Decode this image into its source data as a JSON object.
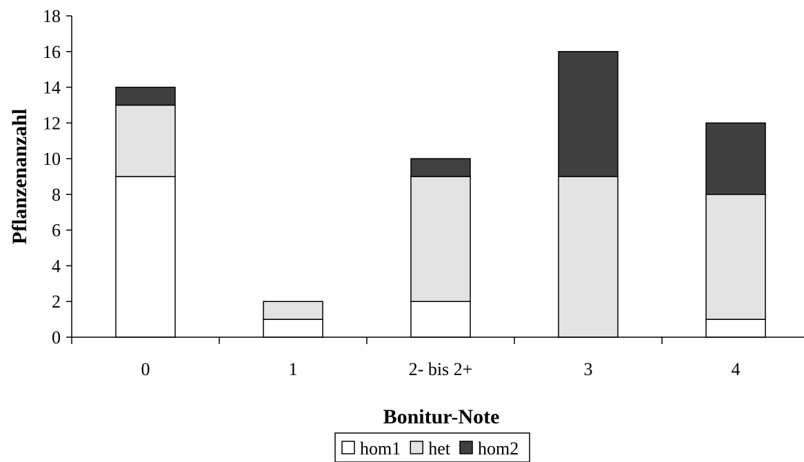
{
  "chart_data": {
    "type": "bar",
    "stacked": true,
    "categories": [
      "0",
      "1",
      "2- bis 2+",
      "3",
      "4"
    ],
    "series": [
      {
        "name": "hom1",
        "color": "#ffffff",
        "values": [
          9,
          1,
          2,
          0,
          1
        ]
      },
      {
        "name": "het",
        "color": "#e3e3e3",
        "values": [
          4,
          1,
          7,
          9,
          7
        ]
      },
      {
        "name": "hom2",
        "color": "#404040",
        "values": [
          1,
          0,
          1,
          7,
          4
        ]
      }
    ],
    "title": "",
    "xlabel": "Bonitur-Note",
    "ylabel": "Pflanzenanzahl",
    "ylim": [
      0,
      18
    ],
    "yticks": [
      0,
      2,
      4,
      6,
      8,
      10,
      12,
      14,
      16,
      18
    ],
    "grid": false,
    "legend": "bottom-center"
  }
}
